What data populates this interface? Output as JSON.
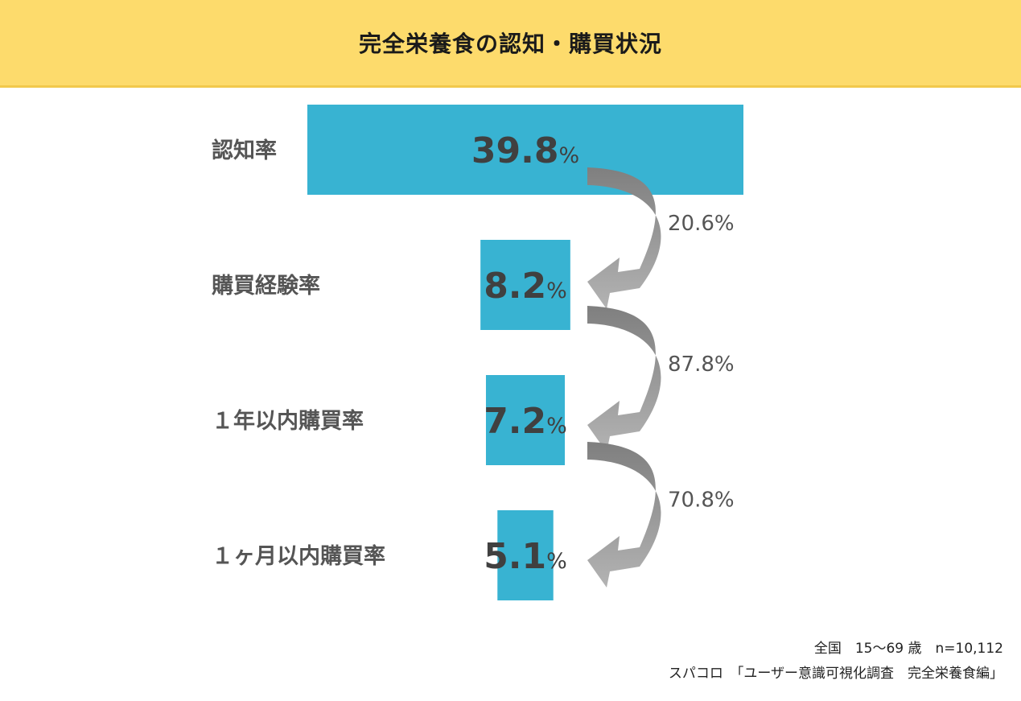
{
  "header": {
    "title": "完全栄養食の認知・購買状況"
  },
  "chart_data": {
    "type": "bar",
    "categories": [
      "認知率",
      "購買経験率",
      "１年以内購買率",
      "１ヶ月以内購買率"
    ],
    "values": [
      39.8,
      8.2,
      7.2,
      5.1
    ],
    "value_labels": [
      "39.8",
      "8.2",
      "7.2",
      "5.1"
    ],
    "unit": "%",
    "conversion_rates": [
      "20.6%",
      "87.8%",
      "70.8%"
    ],
    "colors": {
      "bar": "#38b3d2",
      "arrow_light": "#a8a8a8",
      "arrow_dark": "#7f7f7f",
      "label": "#555555",
      "value": "#404040"
    }
  },
  "footer": {
    "line1": "全国　15～69 歳　n=10,112",
    "line2": "スパコロ　「ユーザー意識可視化調査　完全栄養食編」"
  }
}
